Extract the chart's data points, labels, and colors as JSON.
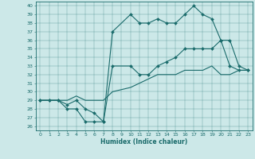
{
  "title": "",
  "xlabel": "Humidex (Indice chaleur)",
  "background_color": "#cce8e8",
  "line_color": "#1a6b6b",
  "xlim": [
    -0.5,
    23.5
  ],
  "ylim": [
    25.5,
    40.5
  ],
  "yticks": [
    26,
    27,
    28,
    29,
    30,
    31,
    32,
    33,
    34,
    35,
    36,
    37,
    38,
    39,
    40
  ],
  "xticks": [
    0,
    1,
    2,
    3,
    4,
    5,
    6,
    7,
    8,
    9,
    10,
    11,
    12,
    13,
    14,
    15,
    16,
    17,
    18,
    19,
    20,
    21,
    22,
    23
  ],
  "line1_x": [
    0,
    1,
    2,
    3,
    4,
    5,
    6,
    7,
    8,
    10,
    11,
    12,
    13,
    14,
    15,
    16,
    17,
    18,
    19,
    20,
    21,
    22,
    23
  ],
  "line1_y": [
    29,
    29,
    29,
    28,
    28,
    26.5,
    26.5,
    26.5,
    37,
    39,
    38,
    38,
    38.5,
    38,
    38,
    39,
    40,
    39,
    38.5,
    36,
    33,
    32.5,
    32.5
  ],
  "line2_x": [
    0,
    1,
    2,
    3,
    4,
    5,
    6,
    7,
    8,
    10,
    11,
    12,
    13,
    14,
    15,
    16,
    17,
    18,
    19,
    20,
    21,
    22,
    23
  ],
  "line2_y": [
    29,
    29,
    29,
    28.5,
    29,
    28,
    27.5,
    26.5,
    33,
    33,
    32,
    32,
    33,
    33.5,
    34,
    35,
    35,
    35,
    35,
    36,
    36,
    33,
    32.5
  ],
  "line3_x": [
    0,
    1,
    2,
    3,
    4,
    5,
    6,
    7,
    8,
    10,
    11,
    12,
    13,
    14,
    15,
    16,
    17,
    18,
    19,
    20,
    21,
    22,
    23
  ],
  "line3_y": [
    29,
    29,
    29,
    29,
    29.5,
    29,
    29,
    29,
    30,
    30.5,
    31,
    31.5,
    32,
    32,
    32,
    32.5,
    32.5,
    32.5,
    33,
    32,
    32,
    32.5,
    32.5
  ]
}
